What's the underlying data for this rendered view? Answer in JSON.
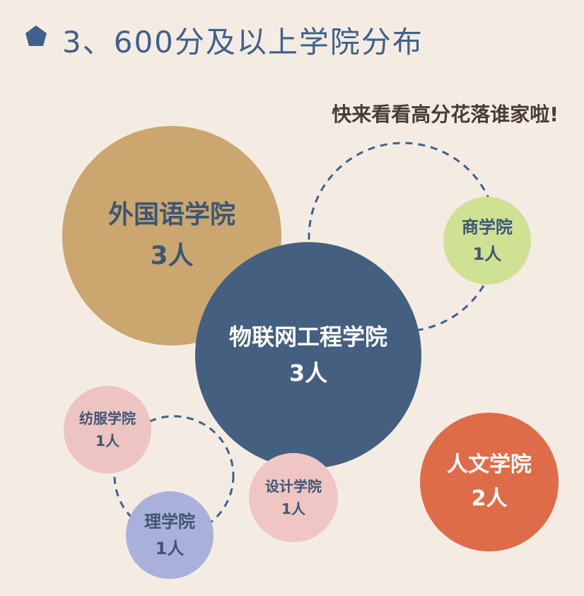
{
  "title": "3、600分及以上学院分布",
  "subtitle": "快来看看高分花落谁家啦!",
  "colors": {
    "title": "#41608a",
    "subtitle": "#4a3b36",
    "background": "#f4ece3"
  },
  "bubbles": [
    {
      "name": "外国语学院",
      "count": "3人",
      "color": "#cba66f"
    },
    {
      "name": "物联网工程学院",
      "count": "3人",
      "color": "#445f80"
    },
    {
      "name": "商学院",
      "count": "1人",
      "color": "#cfe192"
    },
    {
      "name": "人文学院",
      "count": "2人",
      "color": "#df6c49"
    },
    {
      "name": "纺服学院",
      "count": "1人",
      "color": "#edc4c1"
    },
    {
      "name": "设计学院",
      "count": "1人",
      "color": "#efc6c4"
    },
    {
      "name": "理学院",
      "count": "1人",
      "color": "#a9b1da"
    }
  ]
}
